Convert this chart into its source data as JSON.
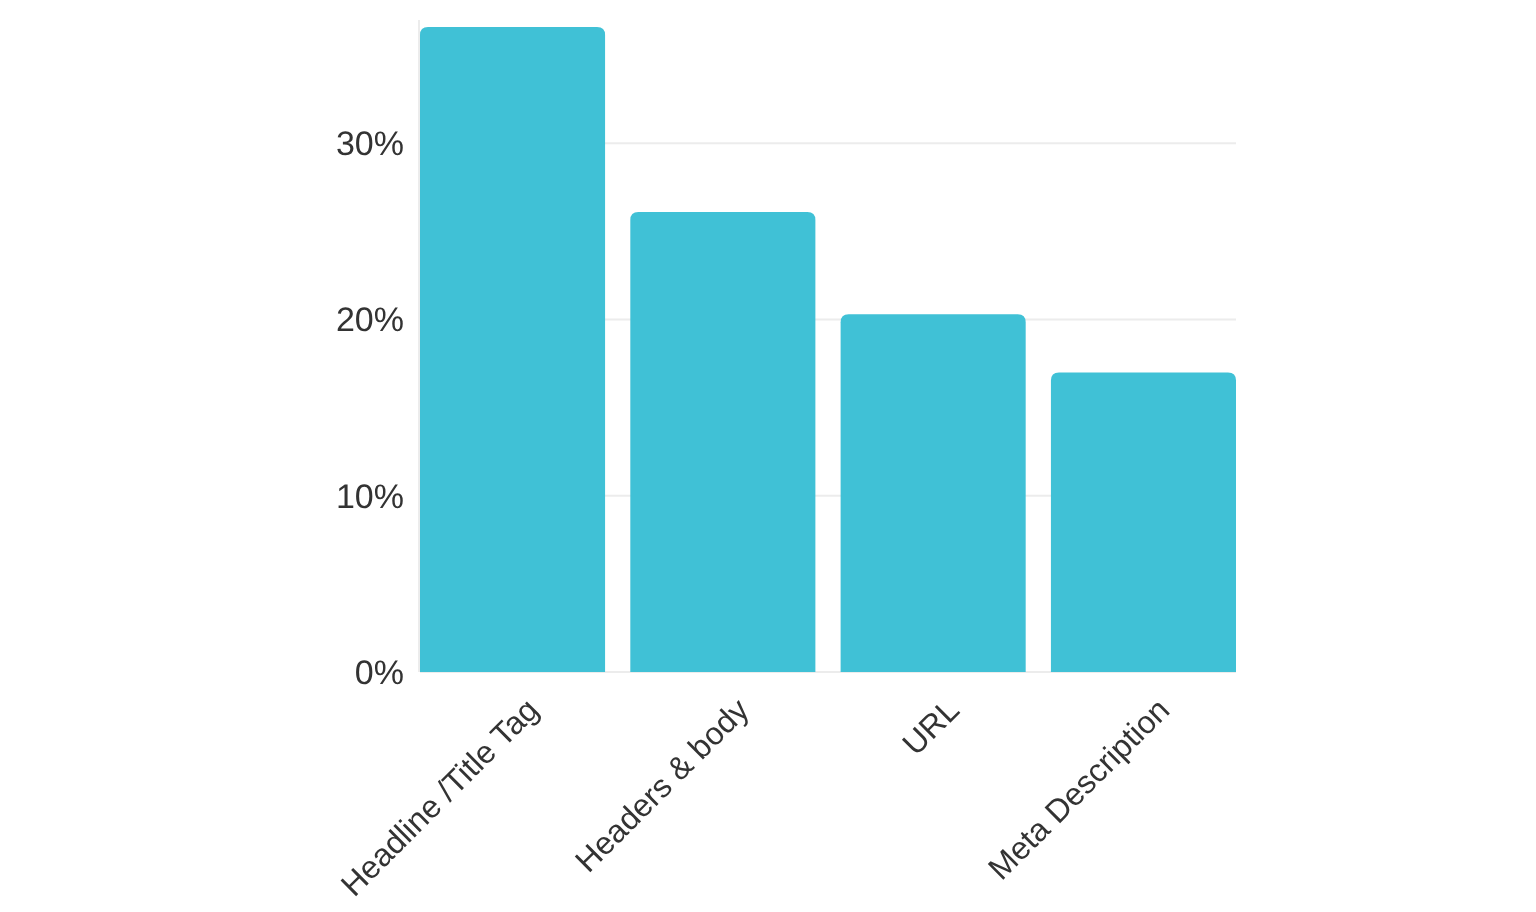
{
  "chart_data": {
    "type": "bar",
    "categories": [
      "Headline /Title Tag",
      "Headers & body",
      "URL",
      "Meta Description"
    ],
    "values": [
      36.6,
      26.1,
      20.3,
      17.0
    ],
    "color": "#40c1d6",
    "ylim": [
      0,
      37
    ],
    "yticks": [
      {
        "value": 0,
        "label": "0%"
      },
      {
        "value": 10,
        "label": "10%"
      },
      {
        "value": 20,
        "label": "20%"
      },
      {
        "value": 30,
        "label": "30%"
      }
    ],
    "grid": "y"
  }
}
